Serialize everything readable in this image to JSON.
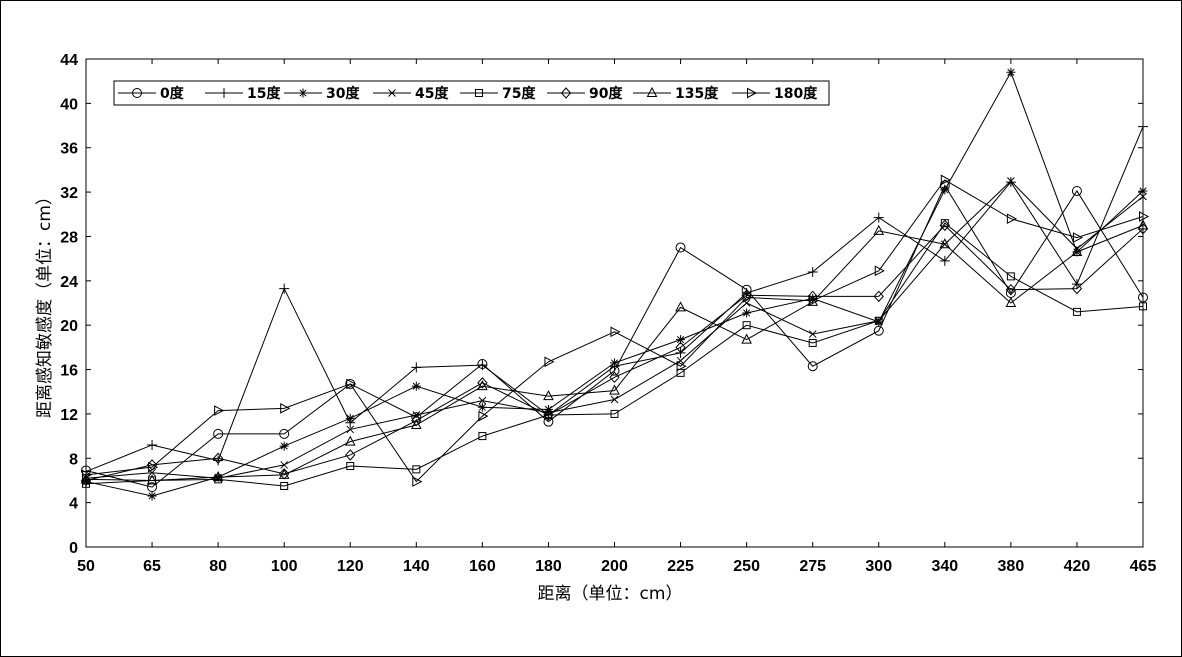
{
  "chart_data": {
    "type": "line",
    "title": "",
    "xlabel": "距离（单位：cm）",
    "ylabel": "距离感知敏感度（单位：cm）",
    "ylim": [
      0,
      44
    ],
    "yticks": [
      0,
      4,
      8,
      12,
      16,
      20,
      24,
      28,
      32,
      36,
      40,
      44
    ],
    "categories": [
      "50",
      "65",
      "80",
      "100",
      "120",
      "140",
      "160",
      "180",
      "200",
      "225",
      "250",
      "275",
      "300",
      "340",
      "380",
      "420",
      "465"
    ],
    "grid": false,
    "legend_position": "top-left",
    "series": [
      {
        "name": "0度",
        "marker": "circle",
        "values": [
          6.9,
          5.4,
          10.2,
          10.2,
          14.7,
          11.7,
          16.5,
          11.3,
          15.9,
          27.0,
          23.2,
          16.3,
          19.5,
          32.6,
          22.9,
          32.1,
          22.5
        ]
      },
      {
        "name": "15度",
        "marker": "plus",
        "values": [
          6.8,
          9.2,
          7.8,
          23.3,
          11.2,
          16.2,
          16.4,
          11.9,
          16.3,
          17.5,
          22.9,
          24.8,
          29.7,
          25.8,
          32.9,
          23.7,
          37.9
        ]
      },
      {
        "name": "30度",
        "marker": "asterisk",
        "values": [
          5.9,
          4.6,
          6.3,
          9.1,
          11.6,
          14.5,
          12.6,
          12.4,
          16.6,
          18.7,
          21.1,
          22.4,
          20.3,
          32.2,
          42.8,
          26.6,
          32.1
        ]
      },
      {
        "name": "45度",
        "marker": "x",
        "values": [
          6.2,
          6.7,
          6.2,
          7.4,
          10.6,
          11.9,
          13.2,
          12.1,
          13.3,
          16.8,
          22.0,
          19.2,
          20.4,
          27.3,
          33.0,
          26.9,
          31.6
        ]
      },
      {
        "name": "75度",
        "marker": "square",
        "values": [
          5.7,
          6.0,
          6.1,
          5.5,
          7.3,
          7.0,
          10.0,
          11.9,
          12.0,
          15.7,
          20.0,
          18.4,
          20.4,
          29.2,
          24.4,
          21.2,
          21.7
        ]
      },
      {
        "name": "90度",
        "marker": "diamond",
        "values": [
          6.0,
          7.4,
          8.0,
          6.6,
          8.3,
          11.4,
          14.8,
          11.9,
          15.3,
          18.0,
          22.7,
          22.6,
          22.6,
          29.0,
          23.2,
          23.3,
          28.7
        ]
      },
      {
        "name": "135度",
        "marker": "triangle-up",
        "values": [
          6.1,
          6.0,
          6.3,
          6.5,
          9.5,
          11.0,
          14.5,
          13.6,
          14.1,
          21.6,
          18.7,
          22.1,
          28.5,
          27.3,
          22.0,
          26.6,
          29.0
        ]
      },
      {
        "name": "180度",
        "marker": "triangle-right",
        "values": [
          6.5,
          7.2,
          12.3,
          12.5,
          14.7,
          5.9,
          11.8,
          16.7,
          19.4,
          16.3,
          22.5,
          22.2,
          24.9,
          33.1,
          29.6,
          27.9,
          29.8
        ]
      }
    ]
  }
}
